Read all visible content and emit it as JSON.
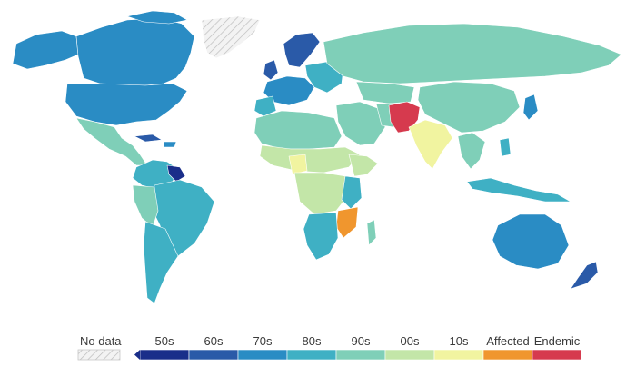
{
  "legend": {
    "no_data_label": "No data",
    "categories": [
      {
        "label": "50s",
        "color": "#1a2e8a"
      },
      {
        "label": "60s",
        "color": "#2a5aa8"
      },
      {
        "label": "70s",
        "color": "#2a8cc4"
      },
      {
        "label": "80s",
        "color": "#3fb0c4"
      },
      {
        "label": "90s",
        "color": "#7fcfb8"
      },
      {
        "label": "00s",
        "color": "#c3e6a8"
      },
      {
        "label": "10s",
        "color": "#f1f4a0"
      },
      {
        "label": "Affected",
        "color": "#f0962e"
      },
      {
        "label": "Endemic",
        "color": "#d63a4e"
      }
    ]
  },
  "colors": {
    "ocean": "#ffffff",
    "no_data_fill": "#e6e6e6",
    "border": "#ffffff"
  }
}
